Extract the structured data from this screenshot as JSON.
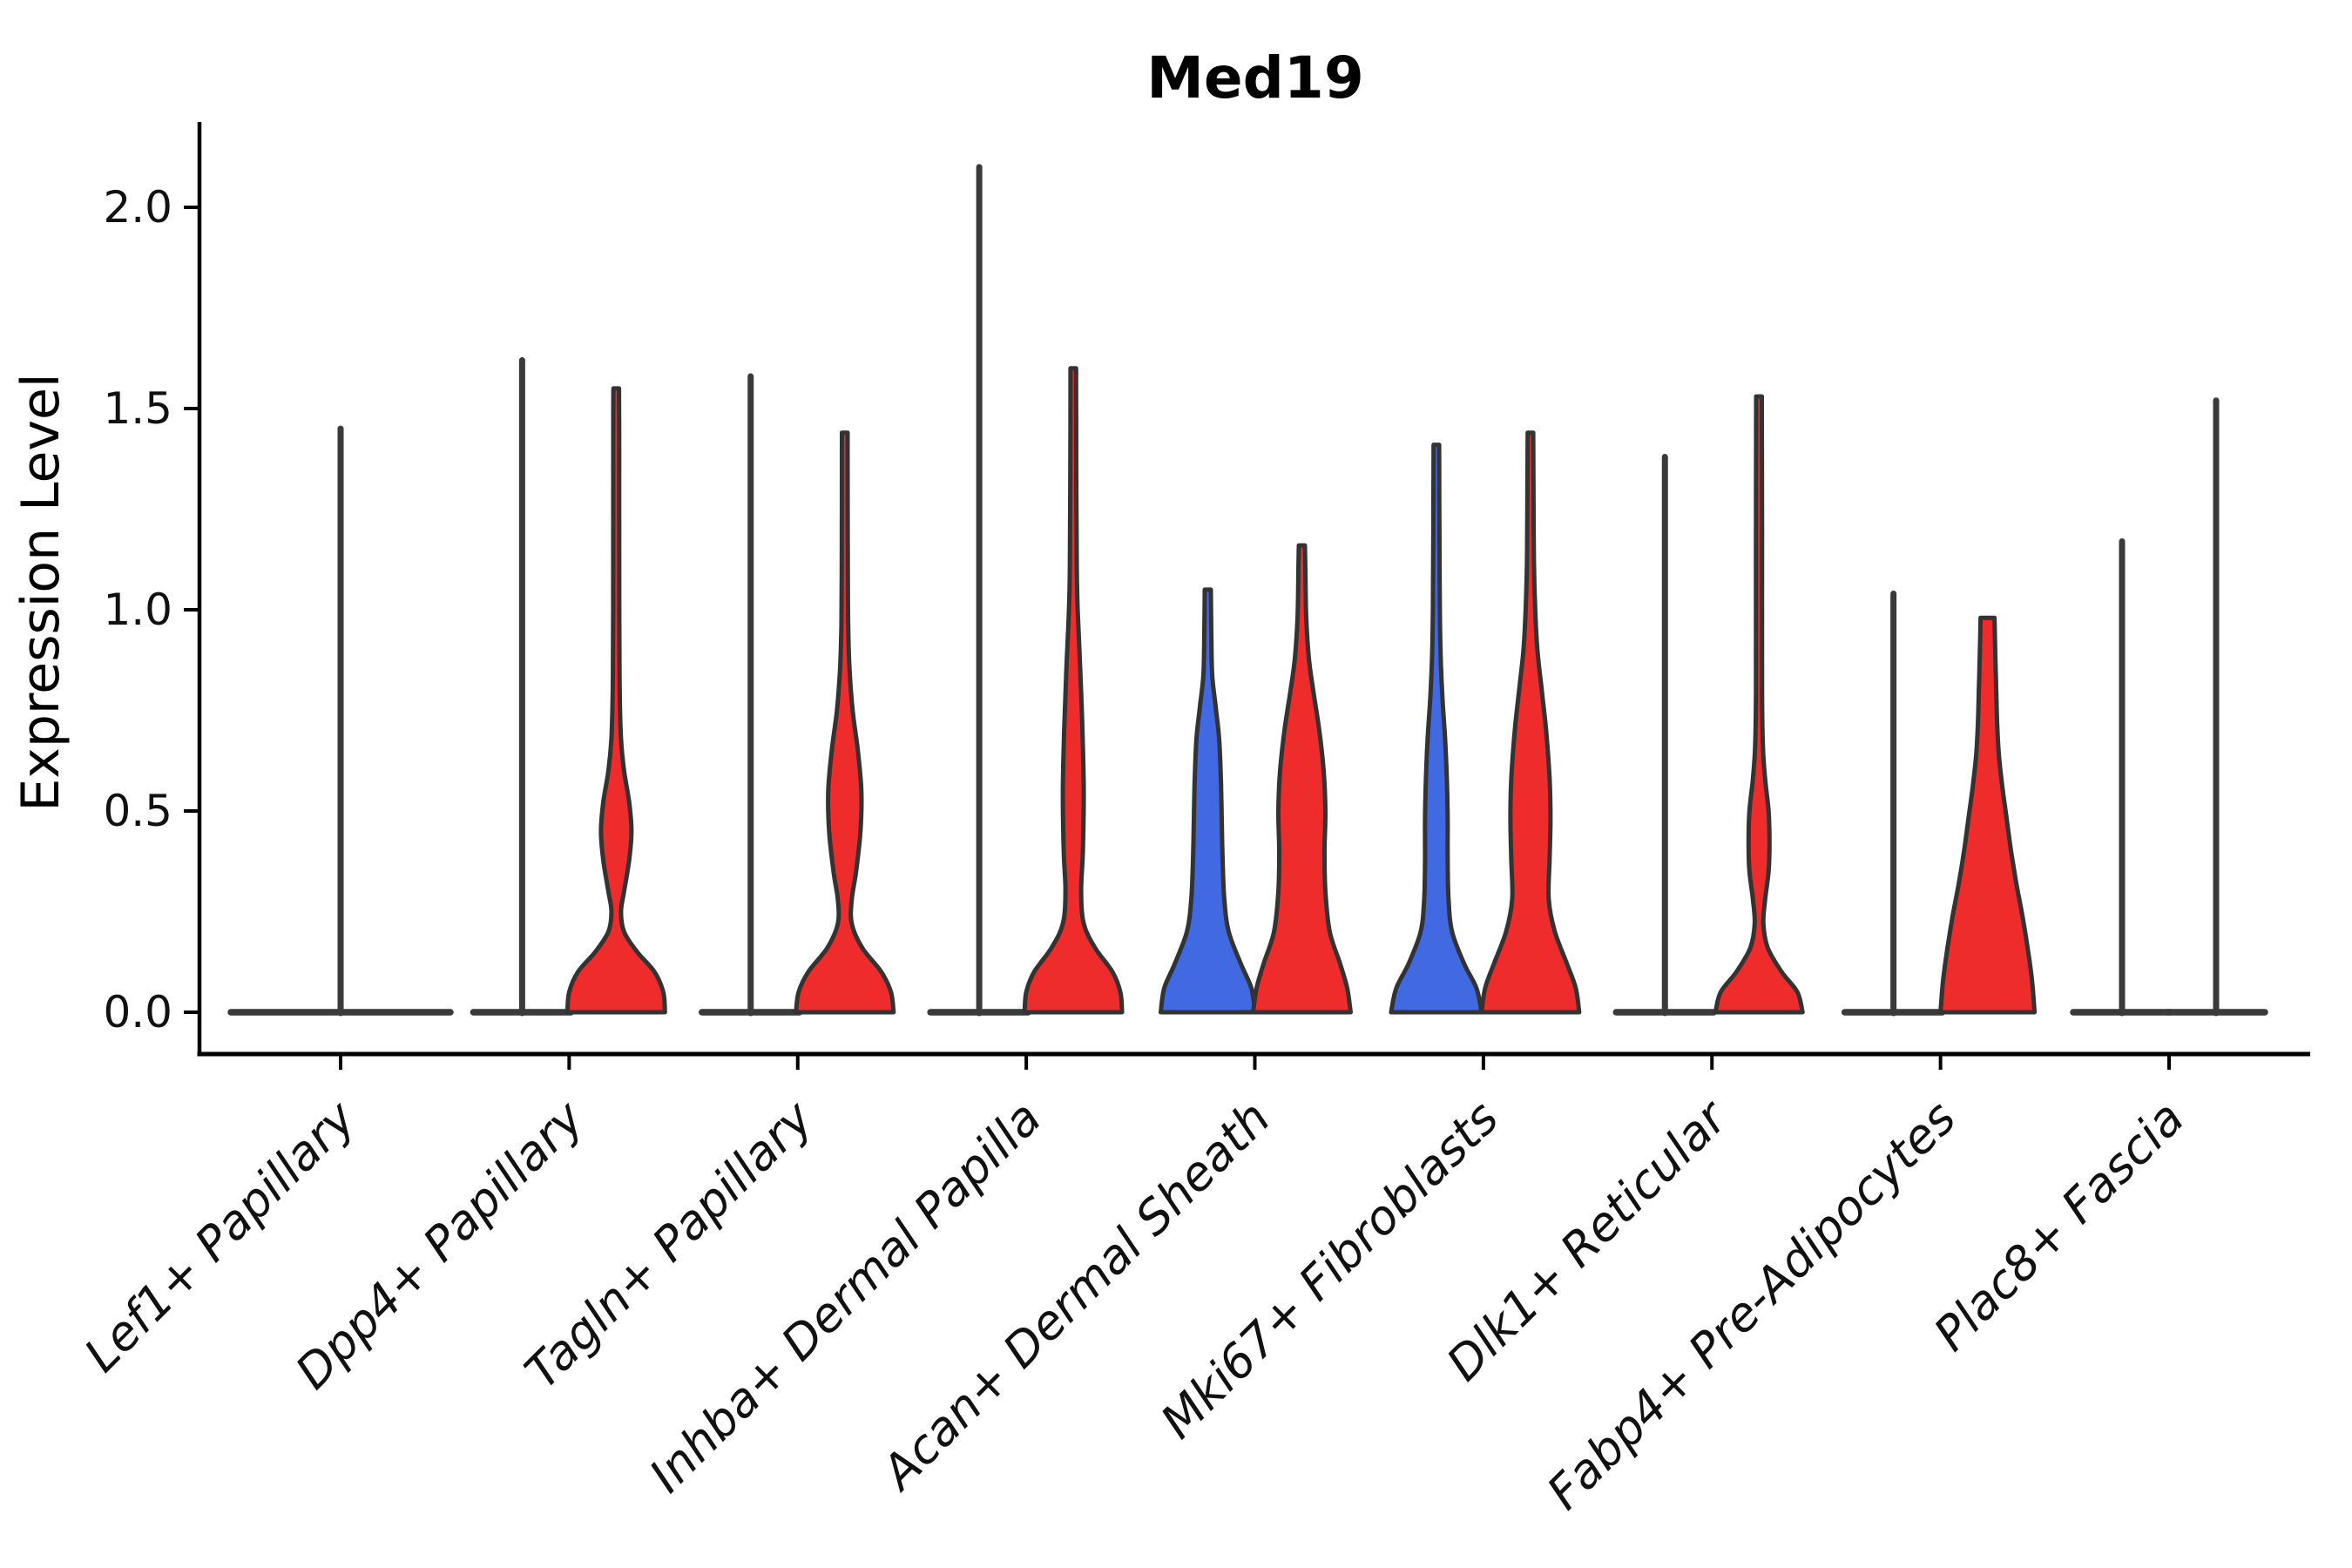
{
  "chart_data": {
    "type": "violin",
    "title": "Med19",
    "ylabel": "Expression Level",
    "xlabel": "",
    "grid": false,
    "legend_position": "none",
    "ylim": [
      -0.1,
      2.21
    ],
    "yticks": [
      {
        "value": 0.0,
        "label": "0.0"
      },
      {
        "value": 0.5,
        "label": "0.5"
      },
      {
        "value": 1.0,
        "label": "1.0"
      },
      {
        "value": 1.5,
        "label": "1.5"
      },
      {
        "value": 2.0,
        "label": "2.0"
      }
    ],
    "colors": {
      "red": "#EE2C2C",
      "blue": "#4169E1",
      "edge": "#333333",
      "flat_line": "#3A3A3A",
      "axis": "#000000"
    },
    "categories": [
      {
        "label": "Lef1+ Papillary",
        "violins": [
          {
            "style": "flat",
            "slot": "center",
            "color": null,
            "max": 1.45
          }
        ]
      },
      {
        "label": "Dpp4+ Papillary",
        "violins": [
          {
            "style": "flat",
            "slot": "left",
            "color": null,
            "max": 1.62
          },
          {
            "style": "body",
            "slot": "right",
            "color": "red",
            "max": 1.55,
            "profile": [
              [
                0,
                56
              ],
              [
                0.05,
                54
              ],
              [
                0.1,
                44
              ],
              [
                0.15,
                24
              ],
              [
                0.2,
                9
              ],
              [
                0.25,
                5.5
              ],
              [
                0.3,
                9
              ],
              [
                0.38,
                15
              ],
              [
                0.45,
                17.5
              ],
              [
                0.52,
                15
              ],
              [
                0.6,
                9
              ],
              [
                0.68,
                5.5
              ],
              [
                0.8,
                4
              ],
              [
                1.0,
                3.5
              ],
              [
                1.45,
                3.4
              ],
              [
                1.55,
                3.2
              ]
            ]
          }
        ]
      },
      {
        "label": "Tagln+ Papillary",
        "violins": [
          {
            "style": "flat",
            "slot": "left",
            "color": null,
            "max": 1.58
          },
          {
            "style": "body",
            "slot": "right",
            "color": "red",
            "max": 1.44,
            "profile": [
              [
                0,
                56
              ],
              [
                0.05,
                53
              ],
              [
                0.1,
                42
              ],
              [
                0.16,
                20
              ],
              [
                0.22,
                8
              ],
              [
                0.28,
                8
              ],
              [
                0.35,
                13
              ],
              [
                0.45,
                18
              ],
              [
                0.55,
                19
              ],
              [
                0.65,
                15
              ],
              [
                0.75,
                9
              ],
              [
                0.85,
                5.5
              ],
              [
                0.95,
                4
              ],
              [
                1.1,
                3.5
              ],
              [
                1.44,
                3.2
              ]
            ]
          }
        ]
      },
      {
        "label": "Inhba+ Dermal Papilla",
        "violins": [
          {
            "style": "flat",
            "slot": "left",
            "color": null,
            "max": 2.1
          },
          {
            "style": "body",
            "slot": "right",
            "color": "red",
            "max": 1.6,
            "profile": [
              [
                0,
                56
              ],
              [
                0.05,
                54
              ],
              [
                0.1,
                45
              ],
              [
                0.16,
                25
              ],
              [
                0.22,
                12
              ],
              [
                0.3,
                9
              ],
              [
                0.4,
                11
              ],
              [
                0.55,
                12
              ],
              [
                0.7,
                10.5
              ],
              [
                0.85,
                8
              ],
              [
                1.0,
                5
              ],
              [
                1.1,
                4
              ],
              [
                1.3,
                3.5
              ],
              [
                1.6,
                3.2
              ]
            ]
          }
        ]
      },
      {
        "label": "Acan+ Dermal Sheath",
        "violins": [
          {
            "style": "body",
            "slot": "left",
            "color": "blue",
            "max": 1.05,
            "profile": [
              [
                0,
                54
              ],
              [
                0.06,
                50
              ],
              [
                0.12,
                38
              ],
              [
                0.2,
                24
              ],
              [
                0.28,
                19
              ],
              [
                0.38,
                17
              ],
              [
                0.48,
                16
              ],
              [
                0.58,
                15
              ],
              [
                0.68,
                13
              ],
              [
                0.76,
                9
              ],
              [
                0.84,
                5
              ],
              [
                0.95,
                4
              ],
              [
                1.05,
                3.5
              ]
            ]
          },
          {
            "style": "body",
            "slot": "right",
            "color": "red",
            "max": 1.16,
            "profile": [
              [
                0,
                56
              ],
              [
                0.06,
                52
              ],
              [
                0.12,
                44
              ],
              [
                0.2,
                32
              ],
              [
                0.3,
                27
              ],
              [
                0.4,
                26
              ],
              [
                0.5,
                27
              ],
              [
                0.6,
                25
              ],
              [
                0.7,
                20
              ],
              [
                0.8,
                13
              ],
              [
                0.88,
                8
              ],
              [
                0.98,
                5
              ],
              [
                1.1,
                4
              ],
              [
                1.16,
                3.5
              ]
            ]
          }
        ]
      },
      {
        "label": "Mki67+ Fibroblasts",
        "violins": [
          {
            "style": "body",
            "slot": "left",
            "color": "blue",
            "max": 1.41,
            "profile": [
              [
                0,
                52
              ],
              [
                0.06,
                46
              ],
              [
                0.12,
                32
              ],
              [
                0.2,
                18
              ],
              [
                0.28,
                14
              ],
              [
                0.38,
                13
              ],
              [
                0.48,
                13
              ],
              [
                0.58,
                12
              ],
              [
                0.68,
                10
              ],
              [
                0.78,
                7
              ],
              [
                0.88,
                5
              ],
              [
                1.0,
                4
              ],
              [
                1.2,
                3.5
              ],
              [
                1.41,
                3.2
              ]
            ]
          },
          {
            "style": "body",
            "slot": "right",
            "color": "red",
            "max": 1.44,
            "profile": [
              [
                0,
                56
              ],
              [
                0.06,
                52
              ],
              [
                0.12,
                42
              ],
              [
                0.2,
                28
              ],
              [
                0.28,
                21
              ],
              [
                0.38,
                22
              ],
              [
                0.48,
                23
              ],
              [
                0.58,
                22
              ],
              [
                0.7,
                18
              ],
              [
                0.8,
                13
              ],
              [
                0.9,
                8
              ],
              [
                1.0,
                5.5
              ],
              [
                1.12,
                4
              ],
              [
                1.3,
                3.5
              ],
              [
                1.44,
                3.2
              ]
            ]
          }
        ]
      },
      {
        "label": "Dlk1+ Reticular",
        "violins": [
          {
            "style": "flat",
            "slot": "left",
            "color": null,
            "max": 1.38
          },
          {
            "style": "body",
            "slot": "right",
            "color": "red",
            "max": 1.53,
            "profile": [
              [
                0,
                50
              ],
              [
                0.05,
                44
              ],
              [
                0.1,
                26
              ],
              [
                0.16,
                10
              ],
              [
                0.22,
                5
              ],
              [
                0.28,
                7
              ],
              [
                0.35,
                11
              ],
              [
                0.42,
                12
              ],
              [
                0.5,
                11
              ],
              [
                0.58,
                7
              ],
              [
                0.66,
                4.5
              ],
              [
                0.8,
                3.5
              ],
              [
                1.2,
                3.5
              ],
              [
                1.53,
                3.2
              ]
            ]
          }
        ]
      },
      {
        "label": "Fabp4+ Pre-Adipocytes",
        "violins": [
          {
            "style": "flat",
            "slot": "left",
            "color": null,
            "max": 1.04
          },
          {
            "style": "body",
            "slot": "right",
            "color": "red",
            "max": 0.98,
            "flat_top": true,
            "profile": [
              [
                0,
                54
              ],
              [
                0.08,
                51
              ],
              [
                0.16,
                46
              ],
              [
                0.24,
                40
              ],
              [
                0.32,
                33
              ],
              [
                0.4,
                27
              ],
              [
                0.48,
                22
              ],
              [
                0.56,
                17
              ],
              [
                0.64,
                13
              ],
              [
                0.72,
                11
              ],
              [
                0.8,
                10
              ],
              [
                0.88,
                9
              ],
              [
                0.98,
                8
              ]
            ]
          }
        ]
      },
      {
        "label": "Plac8+ Fascia",
        "violins": [
          {
            "style": "flat",
            "slot": "left",
            "color": null,
            "max": 1.17
          },
          {
            "style": "flat",
            "slot": "right",
            "color": null,
            "max": 1.52
          }
        ]
      }
    ]
  }
}
